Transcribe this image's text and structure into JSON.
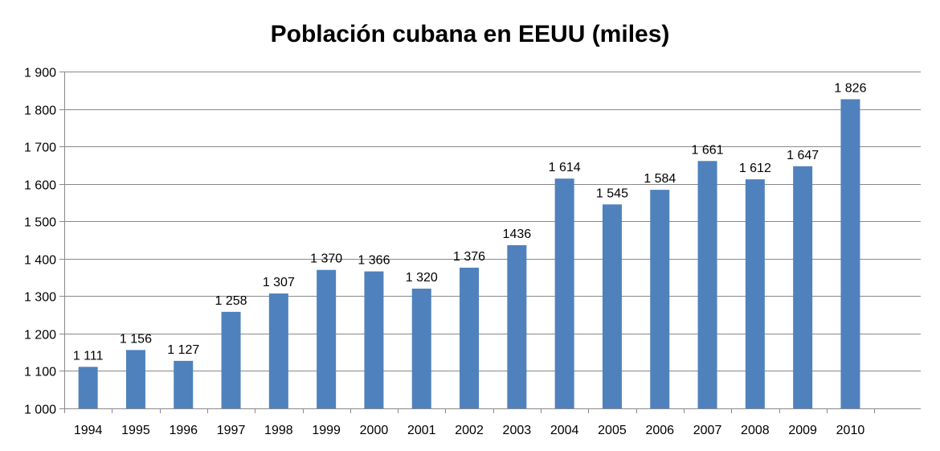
{
  "chart_data": {
    "type": "bar",
    "title": "Población cubana en EEUU (miles)",
    "xlabel": "",
    "ylabel": "",
    "ylim": [
      1000,
      1900
    ],
    "y_ticks": [
      "1 000",
      "1 100",
      "1 200",
      "1 300",
      "1 400",
      "1 500",
      "1 600",
      "1 700",
      "1 800",
      "1 900"
    ],
    "grid": true,
    "legend": "none",
    "bar_color": "#4F81BD",
    "categories": [
      "1994",
      "1995",
      "1996",
      "1997",
      "1998",
      "1999",
      "2000",
      "2001",
      "2002",
      "2003",
      "2004",
      "2005",
      "2006",
      "2007",
      "2008",
      "2009",
      "2010"
    ],
    "values": [
      1111,
      1156,
      1127,
      1258,
      1307,
      1370,
      1366,
      1320,
      1376,
      1436,
      1614,
      1545,
      1584,
      1661,
      1612,
      1647,
      1826
    ],
    "data_labels": [
      "1 111",
      "1 156",
      "1 127",
      "1 258",
      "1 307",
      "1 370",
      "1 366",
      "1 320",
      "1 376",
      "1436",
      "1 614",
      "1 545",
      "1 584",
      "1 661",
      "1 612",
      "1 647",
      "1 826"
    ]
  }
}
